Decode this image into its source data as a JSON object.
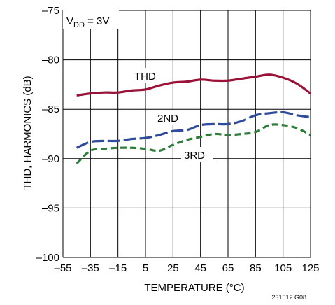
{
  "chart_data": {
    "type": "line",
    "condition": {
      "prefix": "V",
      "subscript": "DD",
      "suffix": " = 3V"
    },
    "xlabel": "TEMPERATURE (°C)",
    "ylabel": "THD, HARMONICS (dB)",
    "xlim": [
      -55,
      125
    ],
    "ylim": [
      -100,
      -75
    ],
    "x_ticks": [
      -55,
      -35,
      -15,
      5,
      25,
      45,
      65,
      85,
      105,
      125
    ],
    "x_tick_labels": [
      "–55",
      "–35",
      "–15",
      "5",
      "25",
      "45",
      "65",
      "85",
      "105",
      "125"
    ],
    "y_ticks": [
      -100,
      -95,
      -90,
      -85,
      -80,
      -75
    ],
    "y_tick_labels": [
      "–100",
      "–95",
      "–90",
      "–85",
      "–80",
      "–75"
    ],
    "grid": true,
    "figure_code": "231512 G08",
    "series": [
      {
        "name": "THD",
        "color": "#9a1238",
        "dash": "solid",
        "x": [
          -45,
          -35,
          -25,
          -15,
          -5,
          5,
          15,
          25,
          35,
          45,
          55,
          65,
          75,
          85,
          95,
          105,
          115,
          125
        ],
        "y": [
          -83.6,
          -83.4,
          -83.3,
          -83.3,
          -83.1,
          -83.0,
          -82.6,
          -82.3,
          -82.2,
          -82.0,
          -82.1,
          -82.1,
          -81.9,
          -81.7,
          -81.5,
          -81.8,
          -82.4,
          -83.4
        ]
      },
      {
        "name": "2ND",
        "color": "#2f4b9c",
        "dash": "long",
        "x": [
          -45,
          -35,
          -25,
          -15,
          -5,
          5,
          15,
          25,
          35,
          45,
          55,
          65,
          75,
          85,
          95,
          105,
          115,
          125
        ],
        "y": [
          -88.9,
          -88.3,
          -88.2,
          -88.2,
          -88.0,
          -87.9,
          -87.6,
          -87.2,
          -87.1,
          -86.6,
          -86.5,
          -86.5,
          -86.2,
          -85.6,
          -85.4,
          -85.3,
          -85.6,
          -85.8
        ]
      },
      {
        "name": "3RD",
        "color": "#2e7d3a",
        "dash": "short",
        "x": [
          -45,
          -35,
          -25,
          -15,
          -5,
          5,
          15,
          25,
          35,
          45,
          55,
          65,
          75,
          85,
          95,
          105,
          115,
          125
        ],
        "y": [
          -90.5,
          -89.2,
          -89.0,
          -88.9,
          -88.9,
          -89.0,
          -89.2,
          -88.6,
          -88.1,
          -87.8,
          -87.5,
          -87.6,
          -87.5,
          -87.3,
          -86.6,
          -86.6,
          -86.9,
          -87.6
        ]
      }
    ]
  }
}
